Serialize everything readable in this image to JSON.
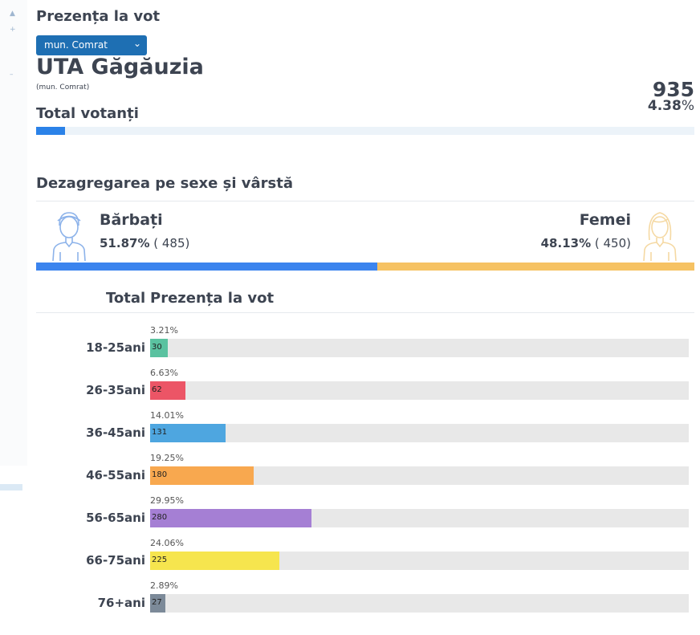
{
  "page": {
    "title": "Prezența la vot",
    "dropdown": {
      "selected": "mun. Comrat"
    },
    "region": "UTA Găgăuzia",
    "region_sub": "(mun. Comrat)",
    "total": {
      "label": "Total votanți",
      "votes": "935",
      "percent": "4.38",
      "percent_sign": "%",
      "fraction": 0.0438
    }
  },
  "gender": {
    "title": "Dezagregarea pe sexe și vârstă",
    "men": {
      "label": "Bărbați",
      "percent": "51.87%",
      "count": "( 485)",
      "fraction": 0.5187
    },
    "women": {
      "label": "Femei",
      "percent": "48.13%",
      "count": "( 450)",
      "fraction": 0.4813
    }
  },
  "age": {
    "col_total": "Total",
    "col_presence": "Prezența la vot",
    "groups": [
      {
        "label": "18-25ani",
        "percent": "3.21%",
        "count": "30",
        "color": "#5ac2a0"
      },
      {
        "label": "26-35ani",
        "percent": "6.63%",
        "count": "62",
        "color": "#ec5566"
      },
      {
        "label": "36-45ani",
        "percent": "14.01%",
        "count": "131",
        "color": "#4ea6e0"
      },
      {
        "label": "46-55ani",
        "percent": "19.25%",
        "count": "180",
        "color": "#f8a84f"
      },
      {
        "label": "56-65ani",
        "percent": "29.95%",
        "count": "280",
        "color": "#a57fd4"
      },
      {
        "label": "66-75ani",
        "percent": "24.06%",
        "count": "225",
        "color": "#f6e54e"
      },
      {
        "label": "76+ani",
        "percent": "2.89%",
        "count": "27",
        "color": "#7c8a99"
      }
    ]
  }
}
